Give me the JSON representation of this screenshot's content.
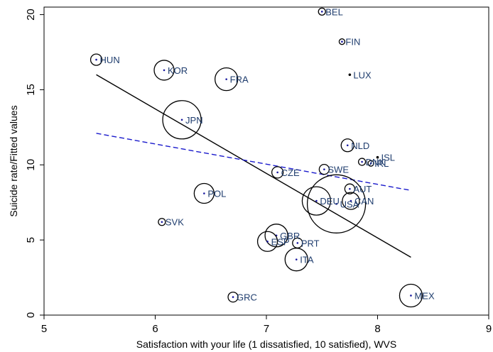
{
  "chart_data": {
    "type": "scatter",
    "title": "",
    "xlabel": "Satisfaction with your life (1 dissatisfied, 10 satisfied), WVS",
    "ylabel": "Suicide rate/Fitted values",
    "xlim": [
      5,
      9
    ],
    "ylim": [
      0,
      20.5
    ],
    "xticks": [
      5,
      6,
      7,
      8,
      9
    ],
    "yticks": [
      0,
      5,
      10,
      15,
      20
    ],
    "grid": false,
    "legend": "none",
    "colors": {
      "bubble": "#000000",
      "center_dot": "#1a1aa0",
      "label": "#1f3d6e",
      "weighted_fit": "#000000",
      "unweighted_fit": "#1a1acc"
    },
    "points": [
      {
        "label": "BEL",
        "x": 7.5,
        "y": 20.2,
        "r": 5
      },
      {
        "label": "FIN",
        "x": 7.68,
        "y": 18.2,
        "r": 4
      },
      {
        "label": "LUX",
        "x": 7.75,
        "y": 16.0,
        "r": 1.5
      },
      {
        "label": "HUN",
        "x": 5.47,
        "y": 17.0,
        "r": 8
      },
      {
        "label": "KOR",
        "x": 6.08,
        "y": 16.3,
        "r": 14
      },
      {
        "label": "FRA",
        "x": 6.64,
        "y": 15.7,
        "r": 16
      },
      {
        "label": "JPN",
        "x": 6.24,
        "y": 13.0,
        "r": 27
      },
      {
        "label": "NLD",
        "x": 7.73,
        "y": 11.3,
        "r": 9
      },
      {
        "label": "ISL",
        "x": 8.0,
        "y": 10.5,
        "r": 1.5
      },
      {
        "label": "DNK",
        "x": 7.86,
        "y": 10.2,
        "r": 5
      },
      {
        "label": "IRL",
        "x": 7.94,
        "y": 10.1,
        "r": 4
      },
      {
        "label": "CZE",
        "x": 7.1,
        "y": 9.5,
        "r": 8
      },
      {
        "label": "SWE",
        "x": 7.52,
        "y": 9.7,
        "r": 7
      },
      {
        "label": "AUT",
        "x": 7.75,
        "y": 8.4,
        "r": 7
      },
      {
        "label": "POL",
        "x": 6.44,
        "y": 8.1,
        "r": 14
      },
      {
        "label": "CAN",
        "x": 7.76,
        "y": 7.6,
        "r": 12
      },
      {
        "label": "DEU",
        "x": 7.45,
        "y": 7.6,
        "r": 20
      },
      {
        "label": "USA",
        "x": 7.63,
        "y": 7.4,
        "r": 41
      },
      {
        "label": "SVK",
        "x": 6.06,
        "y": 6.2,
        "r": 5
      },
      {
        "label": "GBR",
        "x": 7.09,
        "y": 5.3,
        "r": 16
      },
      {
        "label": "ESP",
        "x": 7.01,
        "y": 4.9,
        "r": 14
      },
      {
        "label": "PRT",
        "x": 7.28,
        "y": 4.8,
        "r": 7
      },
      {
        "label": "ITA",
        "x": 7.27,
        "y": 3.7,
        "r": 16
      },
      {
        "label": "GRC",
        "x": 6.7,
        "y": 1.2,
        "r": 7
      },
      {
        "label": "MEX",
        "x": 8.3,
        "y": 1.3,
        "r": 16
      }
    ],
    "fit_lines": [
      {
        "style": "solid",
        "color": "#000000",
        "x": [
          5.47,
          8.3
        ],
        "y": [
          16.0,
          3.85
        ]
      },
      {
        "style": "dashed",
        "color": "#1a1acc",
        "x": [
          5.47,
          8.3
        ],
        "y": [
          12.1,
          8.3
        ]
      }
    ]
  }
}
